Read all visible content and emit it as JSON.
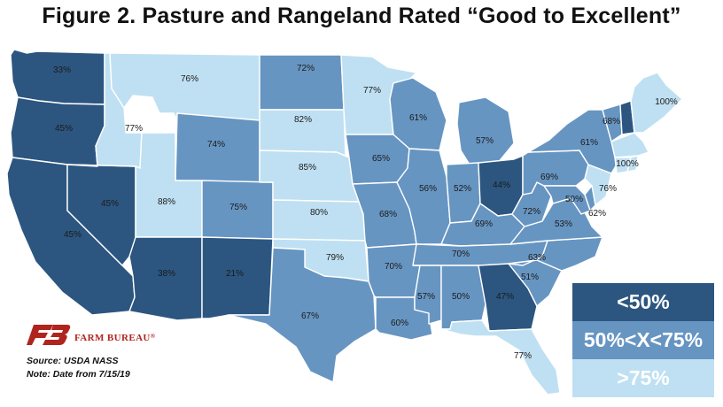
{
  "title": "Figure 2. Pasture and Rangeland Rated “Good to Excellent”",
  "colors": {
    "low": "#2c5680",
    "mid": "#6795c2",
    "high": "#bfe0f2",
    "ocean": "#ffffff",
    "logo": "#b0241e"
  },
  "legend": [
    {
      "label": "<50%",
      "bin": "low"
    },
    {
      "label": "50%<X<75%",
      "bin": "mid"
    },
    {
      "label": ">75%",
      "bin": "high"
    }
  ],
  "organization": "FARM BUREAU",
  "registered_mark": "®",
  "source": "Source: USDA NASS",
  "note": "Note: Date from 7/15/19",
  "states": [
    {
      "code": "WA",
      "value": 33,
      "bin": "low",
      "label": "33%"
    },
    {
      "code": "OR",
      "value": 45,
      "bin": "low",
      "label": "45%"
    },
    {
      "code": "CA",
      "value": 45,
      "bin": "low",
      "label": "45%"
    },
    {
      "code": "NV",
      "value": 45,
      "bin": "low",
      "label": "45%"
    },
    {
      "code": "ID",
      "value": 77,
      "bin": "high",
      "label": "77%"
    },
    {
      "code": "MT",
      "value": 76,
      "bin": "high",
      "label": "76%"
    },
    {
      "code": "WY",
      "value": 74,
      "bin": "mid",
      "label": "74%"
    },
    {
      "code": "UT",
      "value": 88,
      "bin": "high",
      "label": "88%"
    },
    {
      "code": "AZ",
      "value": 38,
      "bin": "low",
      "label": "38%"
    },
    {
      "code": "CO",
      "value": 75,
      "bin": "mid",
      "label": "75%"
    },
    {
      "code": "NM",
      "value": 21,
      "bin": "low",
      "label": "21%"
    },
    {
      "code": "ND",
      "value": 72,
      "bin": "mid",
      "label": "72%"
    },
    {
      "code": "SD",
      "value": 82,
      "bin": "high",
      "label": "82%"
    },
    {
      "code": "NE",
      "value": 85,
      "bin": "high",
      "label": "85%"
    },
    {
      "code": "KS",
      "value": 80,
      "bin": "high",
      "label": "80%"
    },
    {
      "code": "OK",
      "value": 79,
      "bin": "high",
      "label": "79%"
    },
    {
      "code": "TX",
      "value": 67,
      "bin": "mid",
      "label": "67%"
    },
    {
      "code": "MN",
      "value": 77,
      "bin": "high",
      "label": "77%"
    },
    {
      "code": "IA",
      "value": 65,
      "bin": "mid",
      "label": "65%"
    },
    {
      "code": "MO",
      "value": 68,
      "bin": "mid",
      "label": "68%"
    },
    {
      "code": "AR",
      "value": 70,
      "bin": "mid",
      "label": "70%"
    },
    {
      "code": "LA",
      "value": 60,
      "bin": "mid",
      "label": "60%"
    },
    {
      "code": "WI",
      "value": 61,
      "bin": "mid",
      "label": "61%"
    },
    {
      "code": "IL",
      "value": 56,
      "bin": "mid",
      "label": "56%"
    },
    {
      "code": "MI",
      "value": 57,
      "bin": "mid",
      "label": "57%"
    },
    {
      "code": "IN",
      "value": 52,
      "bin": "mid",
      "label": "52%"
    },
    {
      "code": "OH",
      "value": 44,
      "bin": "low",
      "label": "44%"
    },
    {
      "code": "KY",
      "value": 69,
      "bin": "mid",
      "label": "69%"
    },
    {
      "code": "TN",
      "value": 70,
      "bin": "mid",
      "label": "70%"
    },
    {
      "code": "MS",
      "value": 57,
      "bin": "mid",
      "label": "57%"
    },
    {
      "code": "AL",
      "value": 50,
      "bin": "mid",
      "label": "50%"
    },
    {
      "code": "GA",
      "value": 47,
      "bin": "low",
      "label": "47%"
    },
    {
      "code": "FL",
      "value": 77,
      "bin": "high",
      "label": "77%"
    },
    {
      "code": "SC",
      "value": 51,
      "bin": "mid",
      "label": "51%"
    },
    {
      "code": "NC",
      "value": 63,
      "bin": "mid",
      "label": "63%"
    },
    {
      "code": "VA",
      "value": 53,
      "bin": "mid",
      "label": "53%"
    },
    {
      "code": "WV",
      "value": 72,
      "bin": "mid",
      "label": "72%"
    },
    {
      "code": "PA",
      "value": 69,
      "bin": "mid",
      "label": "69%"
    },
    {
      "code": "NY",
      "value": 61,
      "bin": "mid",
      "label": "61%"
    },
    {
      "code": "VT",
      "value": 68,
      "bin": "mid",
      "label": "68%"
    },
    {
      "code": "NH",
      "value": null,
      "bin": "low",
      "label": ""
    },
    {
      "code": "ME",
      "value": 100,
      "bin": "high",
      "label": "100%"
    },
    {
      "code": "MA",
      "value": 100,
      "bin": "high",
      "label": "100%"
    },
    {
      "code": "CT",
      "value": null,
      "bin": "high",
      "label": ""
    },
    {
      "code": "RI",
      "value": null,
      "bin": "high",
      "label": ""
    },
    {
      "code": "NJ",
      "value": 76,
      "bin": "high",
      "label": "76%"
    },
    {
      "code": "DE",
      "value": 62,
      "bin": "mid",
      "label": "62%"
    },
    {
      "code": "MD",
      "value": 50,
      "bin": "mid",
      "label": "50%"
    }
  ]
}
